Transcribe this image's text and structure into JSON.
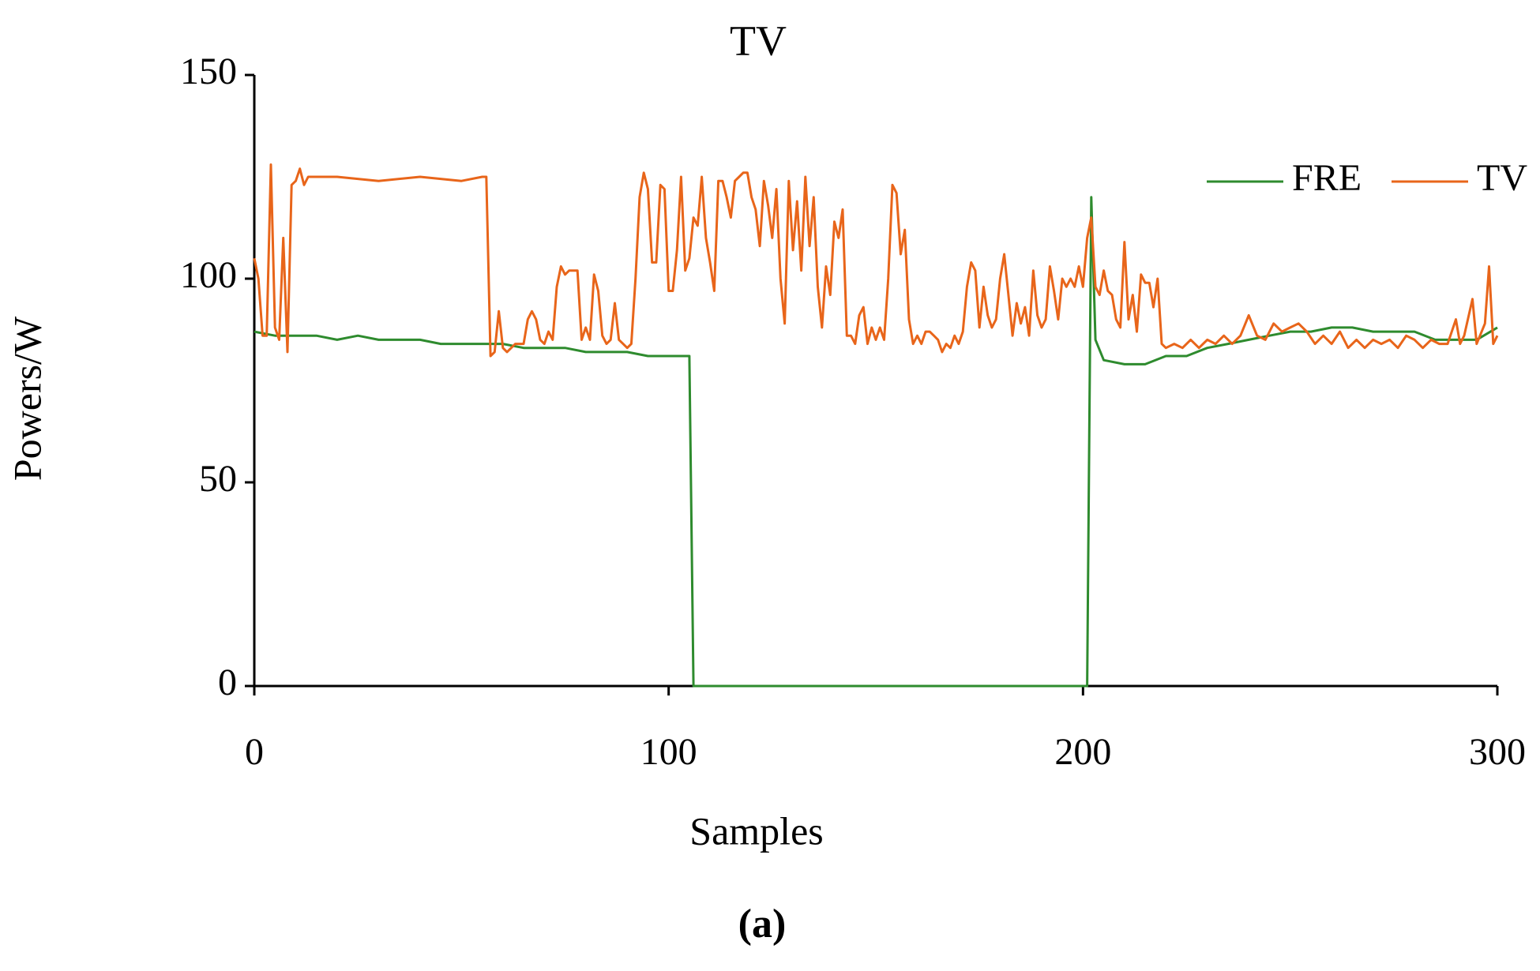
{
  "chart_data": {
    "type": "line",
    "title": "TV",
    "x_label": "Samples",
    "y_label": "Powers/W",
    "caption": "(a)",
    "xlim": [
      0,
      300
    ],
    "xticks": [
      0,
      100,
      200,
      300
    ],
    "ylim": [
      0,
      150
    ],
    "yticks": [
      0,
      50,
      100,
      150
    ],
    "grid": false,
    "legend": "top-right",
    "series": [
      {
        "name": "FRE",
        "color": "#2e8b2e",
        "x": [
          0,
          5,
          10,
          15,
          20,
          25,
          30,
          35,
          40,
          45,
          50,
          55,
          60,
          65,
          70,
          75,
          80,
          85,
          90,
          95,
          100,
          104,
          105,
          106,
          150,
          201,
          202,
          203,
          205,
          210,
          215,
          220,
          225,
          230,
          235,
          240,
          245,
          250,
          255,
          260,
          265,
          270,
          275,
          280,
          285,
          290,
          295,
          300
        ],
        "values": [
          87,
          86,
          86,
          86,
          85,
          86,
          85,
          85,
          85,
          84,
          84,
          84,
          84,
          83,
          83,
          83,
          82,
          82,
          82,
          81,
          81,
          81,
          81,
          0,
          0,
          0,
          120,
          85,
          80,
          79,
          79,
          81,
          81,
          83,
          84,
          85,
          86,
          87,
          87,
          88,
          88,
          87,
          87,
          87,
          85,
          85,
          85,
          88
        ]
      },
      {
        "name": "TV",
        "color": "#e8651a",
        "x": [
          0,
          1,
          2,
          3,
          4,
          5,
          6,
          7,
          8,
          9,
          10,
          11,
          12,
          13,
          20,
          30,
          40,
          50,
          55,
          56,
          57,
          58,
          59,
          60,
          61,
          63,
          65,
          66,
          67,
          68,
          69,
          70,
          71,
          72,
          73,
          74,
          75,
          76,
          77,
          78,
          79,
          80,
          81,
          82,
          83,
          84,
          85,
          86,
          87,
          88,
          89,
          90,
          91,
          92,
          93,
          94,
          95,
          96,
          97,
          98,
          99,
          100,
          101,
          102,
          103,
          104,
          105,
          106,
          107,
          108,
          109,
          110,
          111,
          112,
          113,
          114,
          115,
          116,
          117,
          118,
          119,
          120,
          121,
          122,
          123,
          124,
          125,
          126,
          127,
          128,
          129,
          130,
          131,
          132,
          133,
          134,
          135,
          136,
          137,
          138,
          139,
          140,
          141,
          142,
          143,
          144,
          145,
          146,
          147,
          148,
          149,
          150,
          151,
          152,
          153,
          154,
          155,
          156,
          157,
          158,
          159,
          160,
          161,
          162,
          163,
          164,
          165,
          166,
          167,
          168,
          169,
          170,
          171,
          172,
          173,
          174,
          175,
          176,
          177,
          178,
          179,
          180,
          181,
          182,
          183,
          184,
          185,
          186,
          187,
          188,
          189,
          190,
          191,
          192,
          193,
          194,
          195,
          196,
          197,
          198,
          199,
          200,
          201,
          202,
          203,
          204,
          205,
          206,
          207,
          208,
          209,
          210,
          211,
          212,
          213,
          214,
          215,
          216,
          217,
          218,
          219,
          220,
          222,
          224,
          226,
          228,
          230,
          232,
          234,
          236,
          238,
          240,
          242,
          244,
          246,
          248,
          250,
          252,
          254,
          256,
          258,
          260,
          262,
          264,
          266,
          268,
          270,
          272,
          274,
          276,
          278,
          280,
          282,
          284,
          286,
          288,
          290,
          291,
          292,
          294,
          295,
          297,
          298,
          299,
          300
        ],
        "values": [
          105,
          100,
          86,
          86,
          128,
          88,
          85,
          110,
          82,
          123,
          124,
          127,
          123,
          125,
          125,
          124,
          125,
          124,
          125,
          125,
          81,
          82,
          92,
          83,
          82,
          84,
          84,
          90,
          92,
          90,
          85,
          84,
          87,
          85,
          98,
          103,
          101,
          102,
          102,
          102,
          85,
          88,
          85,
          101,
          97,
          86,
          84,
          85,
          94,
          85,
          84,
          83,
          84,
          100,
          120,
          126,
          122,
          104,
          104,
          123,
          122,
          97,
          97,
          107,
          125,
          102,
          105,
          115,
          113,
          125,
          110,
          104,
          97,
          124,
          124,
          120,
          115,
          124,
          125,
          126,
          126,
          120,
          117,
          108,
          124,
          118,
          110,
          122,
          100,
          89,
          124,
          107,
          119,
          102,
          125,
          108,
          120,
          98,
          88,
          103,
          96,
          114,
          110,
          117,
          86,
          86,
          84,
          91,
          93,
          84,
          88,
          85,
          88,
          85,
          100,
          123,
          121,
          106,
          112,
          90,
          84,
          86,
          84,
          87,
          87,
          86,
          85,
          82,
          84,
          83,
          86,
          84,
          87,
          98,
          104,
          102,
          88,
          98,
          91,
          88,
          90,
          100,
          106,
          96,
          86,
          94,
          89,
          93,
          86,
          102,
          91,
          88,
          90,
          103,
          97,
          90,
          100,
          98,
          100,
          98,
          103,
          98,
          110,
          115,
          98,
          96,
          102,
          97,
          96,
          90,
          88,
          109,
          90,
          96,
          87,
          101,
          99,
          99,
          93,
          100,
          84,
          83,
          84,
          83,
          85,
          83,
          85,
          84,
          86,
          84,
          86,
          91,
          86,
          85,
          89,
          87,
          88,
          89,
          87,
          84,
          86,
          84,
          87,
          83,
          85,
          83,
          85,
          84,
          85,
          83,
          86,
          85,
          83,
          85,
          84,
          84,
          90,
          84,
          86,
          95,
          84,
          89,
          103,
          84,
          86
        ]
      }
    ]
  }
}
